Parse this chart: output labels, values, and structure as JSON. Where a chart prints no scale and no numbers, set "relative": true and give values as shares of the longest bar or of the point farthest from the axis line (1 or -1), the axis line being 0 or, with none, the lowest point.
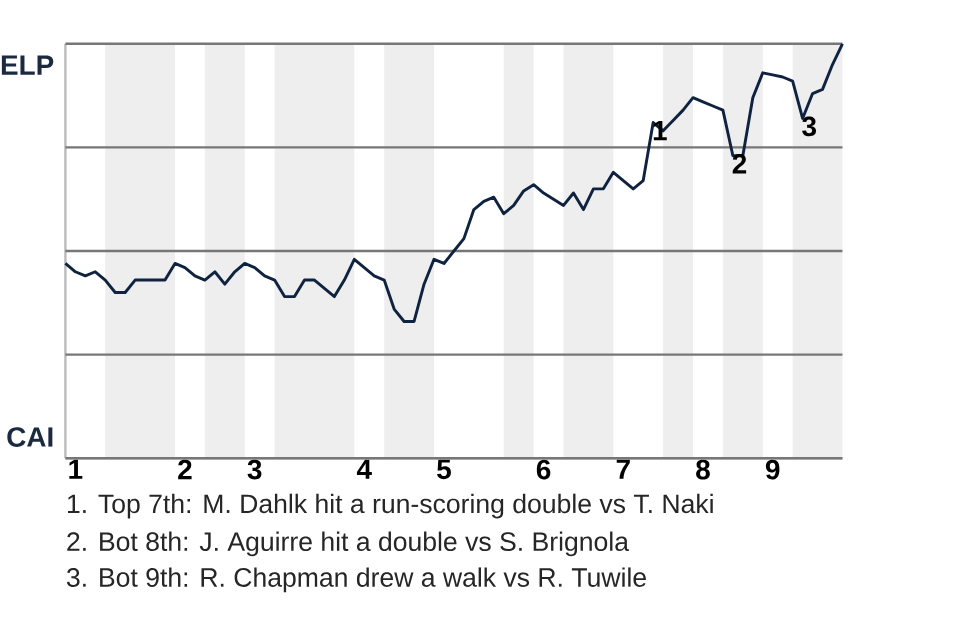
{
  "chart_data": {
    "type": "line",
    "categories": [
      null,
      "1",
      null,
      null,
      null,
      null,
      null,
      null,
      null,
      null,
      null,
      null,
      "2",
      null,
      null,
      null,
      null,
      null,
      null,
      "3",
      null,
      null,
      null,
      null,
      null,
      null,
      null,
      null,
      null,
      null,
      "4",
      null,
      null,
      null,
      null,
      null,
      null,
      null,
      "5",
      null,
      null,
      null,
      null,
      null,
      null,
      null,
      null,
      null,
      "6",
      null,
      null,
      null,
      null,
      null,
      null,
      null,
      "7",
      null,
      null,
      null,
      null,
      null,
      null,
      null,
      "8",
      null,
      null,
      null,
      null,
      null,
      null,
      "9",
      null,
      null,
      null,
      null,
      null,
      null,
      null
    ],
    "series": [
      {
        "color": "#0f2340",
        "values": [
          0.47,
          0.45,
          0.44,
          0.45,
          0.43,
          0.4,
          0.4,
          0.43,
          0.43,
          0.43,
          0.43,
          0.47,
          0.46,
          0.44,
          0.43,
          0.45,
          0.42,
          0.45,
          0.47,
          0.46,
          0.44,
          0.43,
          0.39,
          0.39,
          0.43,
          0.43,
          0.41,
          0.39,
          0.43,
          0.48,
          0.46,
          0.44,
          0.43,
          0.36,
          0.33,
          0.33,
          0.42,
          0.48,
          0.47,
          0.5,
          0.53,
          0.6,
          0.62,
          0.63,
          0.59,
          0.61,
          0.645,
          0.66,
          0.64,
          0.625,
          0.61,
          0.64,
          0.6,
          0.65,
          0.65,
          0.69,
          0.67,
          0.65,
          0.67,
          0.81,
          0.79,
          0.815,
          0.84,
          0.87,
          0.86,
          0.85,
          0.84,
          0.73,
          0.73,
          0.87,
          0.93,
          0.925,
          0.92,
          0.91,
          0.82,
          0.88,
          0.89,
          0.95,
          1.0
        ]
      }
    ],
    "relative": true,
    "grid": "y",
    "marker": "none",
    "line_style": "solid",
    "annotations": [
      "ELP",
      "CAI",
      {
        "text": "1",
        "y": 0.81
      },
      {
        "text": "2",
        "y": 0.73
      },
      {
        "text": "3",
        "y": 0.82
      },
      "1. Top 7th: M. Dahlk hit a run-scoring double vs T. Naki",
      "2. Bot 8th: J. Aguirre hit a double vs S. Brignola",
      "3. Bot 9th: R. Chapman drew a walk vs R. Tuwile"
    ]
  }
}
